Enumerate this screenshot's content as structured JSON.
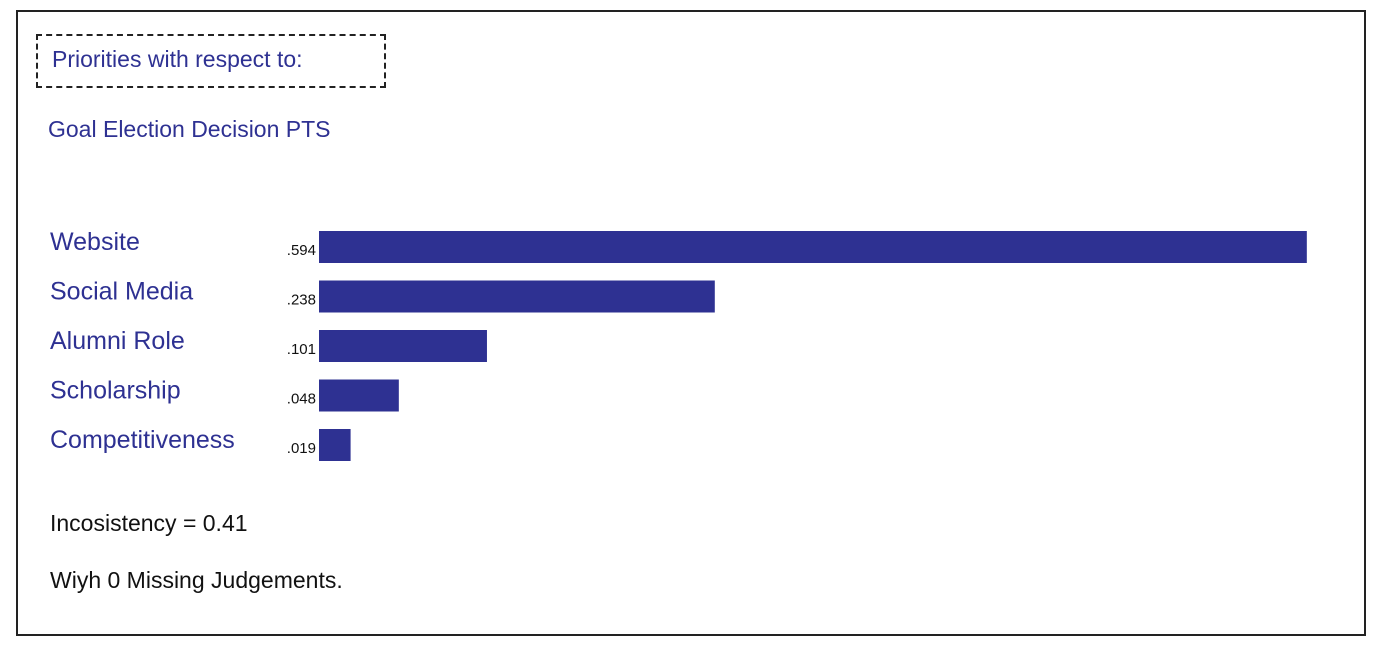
{
  "header": {
    "priorities_label": "Priorities with respect to:",
    "goal_label": "Goal Election Decision PTS"
  },
  "chart_data": {
    "type": "bar",
    "orientation": "horizontal",
    "categories": [
      "Website",
      "Social Media",
      "Alumni Role",
      "Scholarship",
      "Competitiveness"
    ],
    "values": [
      0.594,
      0.238,
      0.101,
      0.048,
      0.019
    ],
    "value_labels": [
      ".594",
      ".238",
      ".101",
      ".048",
      ".019"
    ],
    "bar_color": "#2e3192",
    "label_color": "#2e3192",
    "grid": false
  },
  "footer": {
    "inconsistency": "Incosistency = 0.41",
    "missing": "Wiyh 0 Missing Judgements."
  }
}
